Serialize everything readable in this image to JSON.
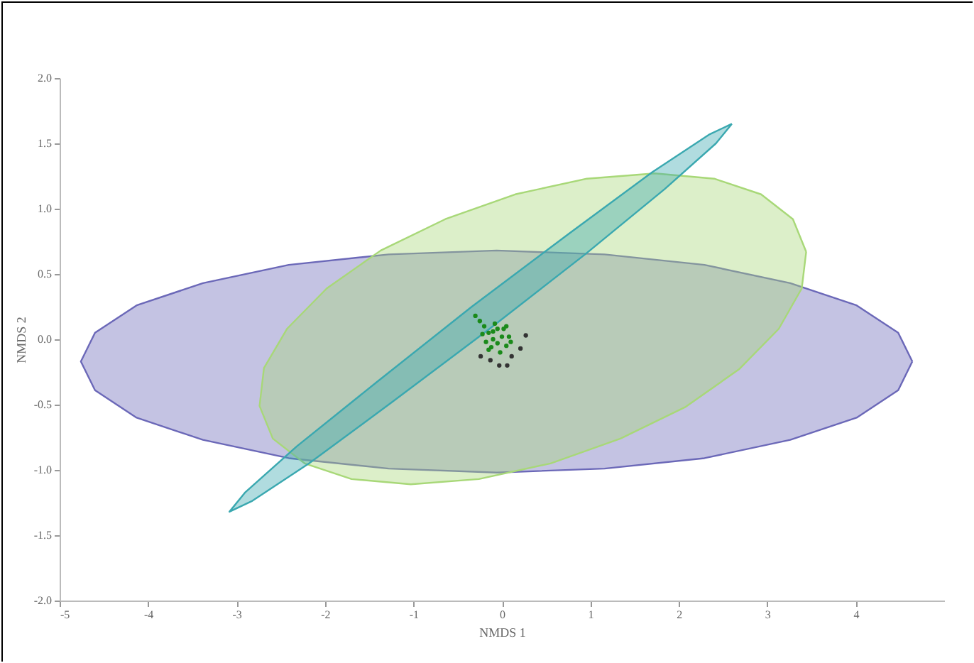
{
  "chart_data": {
    "type": "scatter",
    "xlabel": "NMDS 1",
    "ylabel": "NMDS 2",
    "xlim": [
      -5,
      5
    ],
    "ylim": [
      -2,
      2
    ],
    "xticks": [
      -5,
      -4,
      -3,
      -2,
      -1,
      0,
      1,
      2,
      3,
      4
    ],
    "yticks": [
      {
        "value": -2,
        "label": "-2.0"
      },
      {
        "value": -1.5,
        "label": "-1.5"
      },
      {
        "value": -1,
        "label": "-1.0"
      },
      {
        "value": -0.5,
        "label": "-0.5"
      },
      {
        "value": 0,
        "label": "0.0"
      },
      {
        "value": 0.5,
        "label": "0.5"
      },
      {
        "value": 1,
        "label": "1.0"
      },
      {
        "value": 1.5,
        "label": "1.5"
      },
      {
        "value": 2,
        "label": "2.0"
      }
    ],
    "grid": false,
    "marker": "circle",
    "series": [
      {
        "type": "area",
        "marker": "none",
        "color": "#6b68b8",
        "x": [
          4.64,
          4.48,
          4.01,
          3.26,
          2.29,
          1.16,
          -0.06,
          -1.28,
          -2.41,
          -3.38,
          -4.13,
          -4.6,
          -4.76,
          -4.6,
          -4.13,
          -3.38,
          -2.41,
          -1.28,
          -0.06,
          1.16,
          2.29,
          3.26,
          4.01,
          4.48,
          4.64
        ],
        "values": [
          -0.17,
          0.05,
          0.26,
          0.43,
          0.57,
          0.65,
          0.68,
          0.65,
          0.57,
          0.43,
          0.26,
          0.05,
          -0.17,
          -0.39,
          -0.6,
          -0.77,
          -0.91,
          -0.99,
          -1.02,
          -0.99,
          -0.91,
          -0.77,
          -0.6,
          -0.39,
          -0.17
        ]
      },
      {
        "type": "area",
        "marker": "none",
        "color": "#a8d878",
        "x": [
          3.44,
          3.29,
          2.93,
          2.4,
          1.73,
          0.96,
          0.15,
          -0.64,
          -1.37,
          -1.98,
          -2.43,
          -2.69,
          -2.74,
          -2.59,
          -2.23,
          -1.7,
          -1.03,
          -0.26,
          0.55,
          1.34,
          2.07,
          2.68,
          3.13,
          3.39,
          3.44
        ],
        "values": [
          0.67,
          0.92,
          1.11,
          1.23,
          1.27,
          1.23,
          1.11,
          0.92,
          0.68,
          0.39,
          0.08,
          -0.22,
          -0.51,
          -0.76,
          -0.95,
          -1.07,
          -1.11,
          -1.07,
          -0.95,
          -0.76,
          -0.52,
          -0.23,
          0.08,
          0.39,
          0.67
        ]
      },
      {
        "type": "area",
        "marker": "none",
        "color": "#3aa8b0",
        "x": [
          2.6,
          2.42,
          1.84,
          0.94,
          -0.14,
          -1.24,
          -2.18,
          -2.83,
          -3.08,
          -2.9,
          -2.32,
          -1.42,
          -0.34,
          0.76,
          1.7,
          2.35,
          2.6
        ],
        "values": [
          1.65,
          1.5,
          1.15,
          0.65,
          0.08,
          -0.48,
          -0.95,
          -1.24,
          -1.32,
          -1.17,
          -0.82,
          -0.33,
          0.25,
          0.81,
          1.28,
          1.57,
          1.65
        ]
      },
      {
        "color": "#1a8a1a",
        "x": [
          -0.3,
          -0.25,
          -0.2,
          -0.15,
          -0.1,
          -0.05,
          0.0,
          -0.12,
          -0.05,
          0.05,
          -0.18,
          0.02,
          -0.08,
          0.08,
          -0.15,
          -0.02,
          0.05,
          -0.22,
          0.1,
          -0.1
        ],
        "values": [
          0.18,
          0.14,
          0.1,
          0.05,
          0.0,
          -0.03,
          0.02,
          -0.06,
          0.08,
          -0.05,
          -0.02,
          0.08,
          0.12,
          0.02,
          -0.08,
          -0.1,
          0.1,
          0.04,
          -0.02,
          0.06
        ]
      },
      {
        "color": "#333333",
        "x": [
          -0.24,
          -0.13,
          -0.03,
          0.06,
          0.11,
          0.21,
          0.27
        ],
        "values": [
          -0.13,
          -0.16,
          -0.2,
          -0.2,
          -0.13,
          -0.07,
          0.03
        ]
      }
    ]
  }
}
